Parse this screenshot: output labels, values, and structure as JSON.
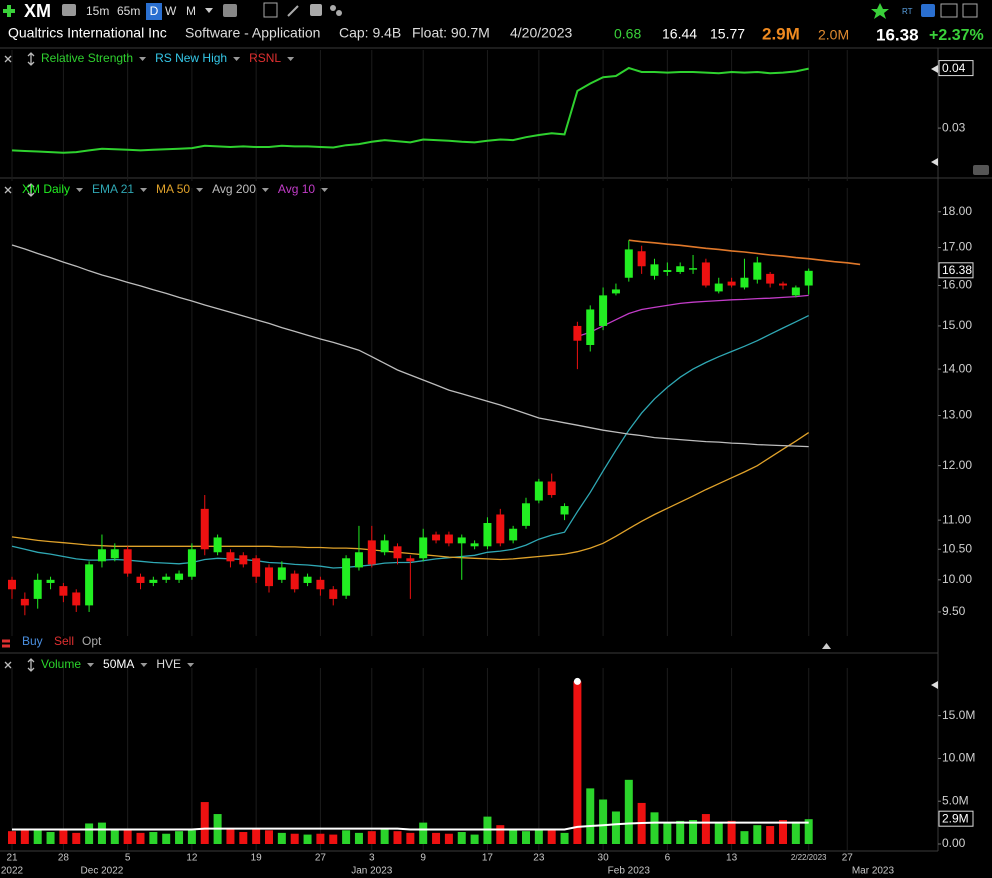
{
  "header": {
    "symbol": "XM",
    "intervals": [
      "15m",
      "65m",
      "D",
      "W",
      "M"
    ],
    "company": "Qualtrics International Inc",
    "industry": "Software - Application",
    "cap": "Cap: 9.4B",
    "float": "Float: 90.7M",
    "date": "4/20/2023",
    "quote": [
      "0.68",
      "16.44",
      "15.77"
    ],
    "volume": "2.9M",
    "avg_volume": "2.0M",
    "last": "16.38",
    "change": "+2.37%"
  },
  "trade_buttons": [
    "Buy",
    "Sell",
    "Opt"
  ],
  "chart_data": [
    {
      "type": "line",
      "ylim": [
        0.0218,
        0.0419
      ],
      "yticks": [
        0.04,
        0.03
      ],
      "last_label": "0.04",
      "series": [
        {
          "name": "Relative Strength",
          "color": "#2fd12f",
          "values": [
            0.0261,
            0.026,
            0.0259,
            0.0258,
            0.0257,
            0.0258,
            0.0261,
            0.0264,
            0.0263,
            0.0262,
            0.0261,
            0.0262,
            0.0263,
            0.0264,
            0.0265,
            0.0269,
            0.0268,
            0.0267,
            0.0268,
            0.0267,
            0.0267,
            0.0269,
            0.0268,
            0.0268,
            0.0267,
            0.0266,
            0.027,
            0.0272,
            0.0276,
            0.0279,
            0.0277,
            0.0275,
            0.028,
            0.0279,
            0.0278,
            0.0276,
            0.0275,
            0.0278,
            0.028,
            0.0279,
            0.0284,
            0.0288,
            0.0291,
            0.0289,
            0.0365,
            0.0378,
            0.0389,
            0.0391,
            0.0405,
            0.0398,
            0.0398,
            0.0397,
            0.0398,
            0.0398,
            0.0397,
            0.0396,
            0.0398,
            0.0397,
            0.0398,
            0.0396,
            0.0397,
            0.0399,
            0.0404,
            null,
            null,
            null,
            null,
            null
          ]
        }
      ],
      "indicators": [
        {
          "name": "RS New High",
          "color": "#35c8e8"
        },
        {
          "name": "RSNL",
          "color": "#e03030"
        }
      ]
    },
    {
      "type": "candlestick",
      "name": "XM Daily",
      "log": true,
      "ylim": [
        9.23,
        18.4
      ],
      "up_color": "#22ee22",
      "down_color": "#ee1111",
      "last_label": "16.38",
      "yticks": [
        {
          "value": 18,
          "label": "18.00"
        },
        {
          "value": 17,
          "label": "17.00"
        },
        {
          "value": 16,
          "label": "16.00"
        },
        {
          "value": 15,
          "label": "15.00"
        },
        {
          "value": 14,
          "label": "14.00"
        },
        {
          "value": 13,
          "label": "13.00"
        },
        {
          "value": 12,
          "label": "12.00"
        },
        {
          "value": 11,
          "label": "11.00"
        },
        {
          "value": 10.5,
          "label": "10.50"
        },
        {
          "value": 10,
          "label": "10.00"
        },
        {
          "value": 9.5,
          "label": "9.50"
        }
      ],
      "open": [
        10.0,
        9.7,
        9.7,
        9.95,
        9.9,
        9.8,
        9.6,
        10.3,
        10.35,
        10.5,
        10.05,
        9.95,
        10.0,
        10.0,
        10.05,
        11.2,
        10.45,
        10.45,
        10.4,
        10.35,
        10.2,
        10.0,
        10.1,
        9.95,
        10.0,
        9.85,
        9.75,
        10.2,
        10.65,
        10.45,
        10.55,
        10.35,
        10.35,
        10.75,
        10.75,
        10.6,
        10.55,
        10.55,
        11.1,
        10.65,
        10.9,
        11.35,
        11.7,
        11.1,
        15.0,
        14.55,
        15.0,
        15.8,
        16.2,
        16.9,
        16.25,
        16.35,
        16.35,
        16.45,
        16.6,
        15.85,
        16.1,
        15.95,
        16.15,
        16.3,
        16.05,
        15.75,
        16.0,
        null,
        null,
        null,
        null,
        null
      ],
      "high": [
        10.05,
        9.8,
        10.1,
        10.05,
        9.95,
        9.85,
        10.3,
        10.75,
        10.6,
        10.55,
        10.1,
        10.05,
        10.1,
        10.15,
        10.6,
        11.45,
        10.75,
        10.5,
        10.45,
        10.4,
        10.25,
        10.3,
        10.15,
        10.1,
        10.05,
        9.9,
        10.4,
        10.9,
        10.9,
        10.75,
        10.6,
        10.4,
        10.85,
        10.8,
        10.8,
        10.75,
        10.65,
        11.05,
        11.2,
        10.9,
        11.4,
        11.75,
        11.85,
        11.3,
        15.1,
        15.5,
        15.95,
        16.05,
        17.2,
        17.05,
        16.7,
        16.6,
        16.6,
        16.8,
        16.7,
        16.2,
        16.2,
        16.7,
        16.75,
        16.35,
        16.1,
        16.0,
        16.44,
        null,
        null,
        null,
        null,
        null
      ],
      "low": [
        9.7,
        9.45,
        9.55,
        9.85,
        9.65,
        9.5,
        9.5,
        10.2,
        10.3,
        10.05,
        9.85,
        9.9,
        9.95,
        9.95,
        10.0,
        10.4,
        10.4,
        10.2,
        10.2,
        9.95,
        9.8,
        9.95,
        9.8,
        9.9,
        9.75,
        9.6,
        9.7,
        10.15,
        10.2,
        10.4,
        10.25,
        9.7,
        10.3,
        10.6,
        10.55,
        10.0,
        10.5,
        10.5,
        10.55,
        10.6,
        10.85,
        11.3,
        11.4,
        11.0,
        14.0,
        14.4,
        14.9,
        15.75,
        16.1,
        16.3,
        16.15,
        16.25,
        16.3,
        16.3,
        15.95,
        15.8,
        15.95,
        15.9,
        16.05,
        15.95,
        15.9,
        15.7,
        15.77,
        null,
        null,
        null,
        null,
        null
      ],
      "close": [
        9.85,
        9.6,
        10.0,
        10.0,
        9.75,
        9.6,
        10.25,
        10.5,
        10.5,
        10.1,
        9.95,
        10.0,
        10.05,
        10.1,
        10.5,
        10.5,
        10.7,
        10.3,
        10.25,
        10.05,
        9.9,
        10.2,
        9.85,
        10.05,
        9.85,
        9.7,
        10.35,
        10.45,
        10.25,
        10.65,
        10.35,
        10.3,
        10.7,
        10.65,
        10.6,
        10.7,
        10.6,
        10.95,
        10.6,
        10.85,
        11.3,
        11.7,
        11.45,
        11.25,
        14.65,
        15.4,
        15.75,
        15.9,
        16.95,
        16.5,
        16.55,
        16.4,
        16.5,
        16.45,
        16.0,
        16.05,
        16.0,
        16.2,
        16.6,
        16.05,
        16.0,
        15.95,
        16.38,
        null,
        null,
        null,
        null,
        null
      ],
      "series": [
        {
          "name": "EMA 21",
          "color": "#2fa8b4",
          "values": [
            10.55,
            10.5,
            10.45,
            10.42,
            10.38,
            10.34,
            10.32,
            10.32,
            10.33,
            10.32,
            10.3,
            10.28,
            10.27,
            10.26,
            10.28,
            10.33,
            10.35,
            10.34,
            10.33,
            10.31,
            10.28,
            10.27,
            10.25,
            10.24,
            10.22,
            10.19,
            10.2,
            10.22,
            10.24,
            10.27,
            10.28,
            10.28,
            10.31,
            10.34,
            10.36,
            10.38,
            10.4,
            10.45,
            10.47,
            10.5,
            10.57,
            10.67,
            10.74,
            10.79,
            11.15,
            11.5,
            11.9,
            12.3,
            12.7,
            13.05,
            13.35,
            13.6,
            13.82,
            14.0,
            14.15,
            14.28,
            14.4,
            14.52,
            14.65,
            14.8,
            14.95,
            15.1,
            15.25,
            null,
            null,
            null,
            null,
            null
          ]
        },
        {
          "name": "MA 50",
          "color": "#e0a22a",
          "values": [
            10.71,
            10.68,
            10.65,
            10.63,
            10.61,
            10.59,
            10.57,
            10.56,
            10.55,
            10.55,
            10.55,
            10.55,
            10.55,
            10.55,
            10.55,
            10.55,
            10.55,
            10.55,
            10.55,
            10.55,
            10.55,
            10.54,
            10.54,
            10.53,
            10.53,
            10.52,
            10.52,
            10.51,
            10.49,
            10.47,
            10.45,
            10.43,
            10.41,
            10.39,
            10.37,
            10.36,
            10.35,
            10.34,
            10.33,
            10.34,
            10.36,
            10.38,
            10.4,
            10.42,
            10.46,
            10.52,
            10.6,
            10.72,
            10.85,
            10.98,
            11.1,
            11.21,
            11.32,
            11.43,
            11.55,
            11.66,
            11.77,
            11.88,
            12.0,
            12.16,
            12.32,
            12.48,
            12.65,
            null,
            null,
            null,
            null,
            null
          ]
        },
        {
          "name": "Avg 200",
          "color": "#bdbdbd",
          "values": [
            17.07,
            16.96,
            16.84,
            16.73,
            16.61,
            16.5,
            16.38,
            16.27,
            16.18,
            16.08,
            15.99,
            15.89,
            15.8,
            15.7,
            15.61,
            15.51,
            15.42,
            15.33,
            15.24,
            15.15,
            15.06,
            14.96,
            14.87,
            14.78,
            14.69,
            14.61,
            14.52,
            14.43,
            14.28,
            14.13,
            13.98,
            13.87,
            13.76,
            13.65,
            13.54,
            13.46,
            13.38,
            13.3,
            13.22,
            13.13,
            13.04,
            12.95,
            12.9,
            12.85,
            12.8,
            12.75,
            12.7,
            12.66,
            12.62,
            12.59,
            12.55,
            12.53,
            12.51,
            12.49,
            12.47,
            12.46,
            12.44,
            12.43,
            12.41,
            12.4,
            12.39,
            12.38,
            12.37,
            null,
            null,
            null,
            null,
            null
          ]
        },
        {
          "name": "Avg 10",
          "color": "#c23cc8",
          "values": [
            null,
            null,
            null,
            null,
            null,
            null,
            null,
            null,
            null,
            null,
            null,
            null,
            null,
            null,
            null,
            null,
            null,
            null,
            null,
            null,
            null,
            null,
            null,
            null,
            null,
            null,
            null,
            null,
            null,
            null,
            null,
            null,
            null,
            null,
            null,
            null,
            null,
            null,
            null,
            null,
            null,
            null,
            null,
            null,
            14.75,
            14.85,
            15.0,
            15.15,
            15.3,
            15.4,
            15.45,
            15.5,
            15.55,
            15.58,
            15.6,
            15.62,
            15.64,
            15.65,
            15.67,
            15.68,
            15.7,
            15.72,
            15.75,
            null,
            null,
            null,
            null,
            null
          ]
        }
      ],
      "trendline": {
        "color": "#e0782a",
        "values": [
          null,
          null,
          null,
          null,
          null,
          null,
          null,
          null,
          null,
          null,
          null,
          null,
          null,
          null,
          null,
          null,
          null,
          null,
          null,
          null,
          null,
          null,
          null,
          null,
          null,
          null,
          null,
          null,
          null,
          null,
          null,
          null,
          null,
          null,
          null,
          null,
          null,
          null,
          null,
          null,
          null,
          null,
          null,
          null,
          null,
          null,
          null,
          null,
          17.2,
          17.16,
          17.13,
          17.09,
          17.06,
          17.02,
          16.98,
          16.95,
          16.91,
          16.88,
          16.84,
          16.8,
          16.77,
          16.73,
          16.7,
          16.66,
          16.62,
          16.59,
          16.55,
          null
        ]
      }
    },
    {
      "type": "bar",
      "name": "Volume",
      "color": "#2bd42b",
      "ylim": [
        0,
        19400000
      ],
      "last_label": "2.9M",
      "yticks": [
        {
          "value": 0,
          "label": "0.00"
        },
        {
          "value": 5000000,
          "label": "5.0M"
        },
        {
          "value": 10000000,
          "label": "10.0M"
        },
        {
          "value": 15000000,
          "label": "15.0M"
        }
      ],
      "categories": [
        "21",
        null,
        null,
        null,
        "28",
        null,
        null,
        null,
        null,
        "5",
        null,
        null,
        null,
        null,
        "12",
        null,
        null,
        null,
        null,
        "19",
        null,
        null,
        null,
        null,
        "27",
        null,
        null,
        null,
        "3",
        null,
        null,
        null,
        "9",
        null,
        null,
        null,
        null,
        "17",
        null,
        null,
        null,
        "23",
        null,
        null,
        null,
        null,
        "30",
        null,
        null,
        null,
        null,
        "6",
        null,
        null,
        null,
        null,
        "13",
        null,
        null,
        null,
        null,
        null,
        "2/22/2023",
        null,
        null,
        "27",
        null,
        null
      ],
      "category_months": [
        "2022",
        null,
        null,
        null,
        null,
        null,
        null,
        "Dec 2022",
        null,
        null,
        null,
        null,
        null,
        null,
        null,
        null,
        null,
        null,
        null,
        null,
        null,
        null,
        null,
        null,
        null,
        null,
        null,
        null,
        "Jan 2023",
        null,
        null,
        null,
        null,
        null,
        null,
        null,
        null,
        null,
        null,
        null,
        null,
        null,
        null,
        null,
        null,
        null,
        null,
        null,
        "Feb 2023",
        null,
        null,
        null,
        null,
        null,
        null,
        null,
        null,
        null,
        null,
        null,
        null,
        null,
        null,
        null,
        null,
        null,
        null,
        "Mar 2023"
      ],
      "values": [
        1500000,
        1600000,
        1700000,
        1400000,
        1600000,
        1300000,
        2400000,
        2500000,
        1700000,
        1600000,
        1300000,
        1400000,
        1200000,
        1500000,
        1600000,
        4900000,
        3500000,
        1800000,
        1400000,
        1700000,
        1600000,
        1300000,
        1200000,
        1100000,
        1200000,
        1100000,
        1600000,
        1300000,
        1500000,
        1700000,
        1500000,
        1300000,
        2500000,
        1300000,
        1200000,
        1400000,
        1100000,
        3200000,
        2200000,
        1600000,
        1500000,
        1700000,
        1600000,
        1300000,
        19000000,
        6500000,
        5200000,
        3800000,
        7500000,
        4800000,
        3700000,
        2400000,
        2700000,
        2800000,
        3500000,
        2500000,
        2700000,
        1500000,
        2200000,
        2100000,
        2800000,
        2600000,
        2900000,
        null,
        null,
        null,
        null,
        null
      ],
      "series": [
        {
          "name": "50MA",
          "color": "#ffffff",
          "values": [
            1700000,
            1700000,
            1700000,
            1700000,
            1700000,
            1700000,
            1700000,
            1700000,
            1700000,
            1700000,
            1700000,
            1700000,
            1700000,
            1700000,
            1700000,
            1800000,
            1800000,
            1800000,
            1800000,
            1800000,
            1800000,
            1800000,
            1800000,
            1800000,
            1800000,
            1800000,
            1800000,
            1800000,
            1800000,
            1800000,
            1800000,
            1700000,
            1700000,
            1700000,
            1700000,
            1700000,
            1700000,
            1700000,
            1700000,
            1700000,
            1700000,
            1700000,
            1700000,
            1700000,
            2000000,
            2100000,
            2200000,
            2300000,
            2400000,
            2450000,
            2500000,
            2500000,
            2500000,
            2500000,
            2500000,
            2500000,
            2500000,
            2500000,
            2500000,
            2500000,
            2500000,
            2500000,
            2500000,
            null,
            null,
            null,
            null,
            null
          ]
        }
      ],
      "indicators": [
        {
          "name": "HVE",
          "color": "#dddddd"
        }
      ]
    }
  ]
}
